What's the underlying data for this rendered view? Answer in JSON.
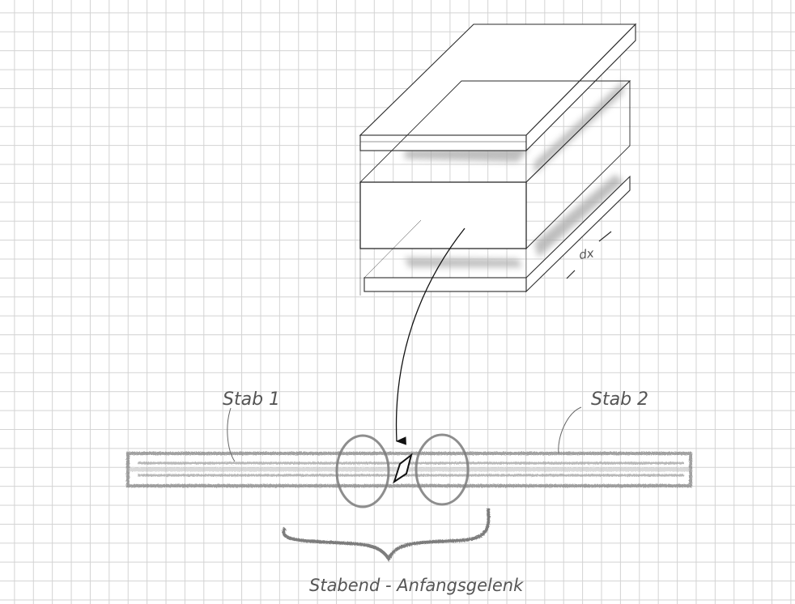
{
  "labels": {
    "stab1": "Stab 1",
    "stab2": "Stab 2",
    "dx": "dx",
    "caption": "Stabend - Anfangsgelenk"
  },
  "colors": {
    "pencil": "#2a2a2a",
    "shade": "#9a9a9a",
    "grid": "#d3d3d3"
  }
}
